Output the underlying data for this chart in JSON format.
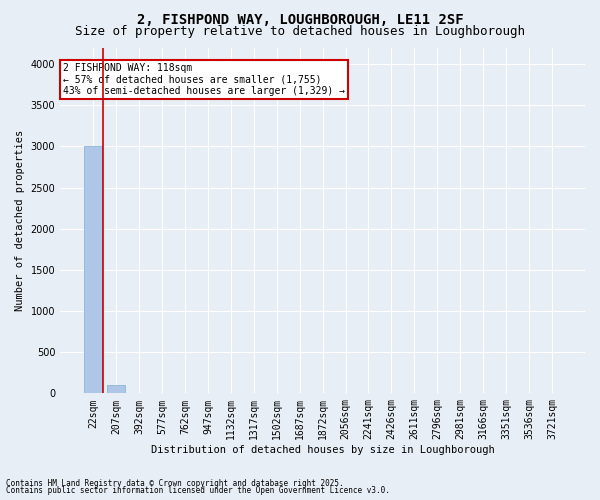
{
  "title1": "2, FISHPOND WAY, LOUGHBOROUGH, LE11 2SF",
  "title2": "Size of property relative to detached houses in Loughborough",
  "xlabel": "Distribution of detached houses by size in Loughborough",
  "ylabel": "Number of detached properties",
  "footer1": "Contains HM Land Registry data © Crown copyright and database right 2025.",
  "footer2": "Contains public sector information licensed under the Open Government Licence v3.0.",
  "annotation_line1": "2 FISHPOND WAY: 118sqm",
  "annotation_line2": "← 57% of detached houses are smaller (1,755)",
  "annotation_line3": "43% of semi-detached houses are larger (1,329) →",
  "categories": [
    "22sqm",
    "207sqm",
    "392sqm",
    "577sqm",
    "762sqm",
    "947sqm",
    "1132sqm",
    "1317sqm",
    "1502sqm",
    "1687sqm",
    "1872sqm",
    "2056sqm",
    "2241sqm",
    "2426sqm",
    "2611sqm",
    "2796sqm",
    "2981sqm",
    "3166sqm",
    "3351sqm",
    "3536sqm",
    "3721sqm"
  ],
  "bar_heights": [
    3000,
    100,
    0,
    0,
    0,
    0,
    0,
    0,
    0,
    0,
    0,
    0,
    0,
    0,
    0,
    0,
    0,
    0,
    0,
    0,
    0
  ],
  "bar_color": "#aec6e8",
  "bar_edge_color": "#7bafd4",
  "vline_color": "#cc0000",
  "ylim": [
    0,
    4200
  ],
  "yticks": [
    0,
    500,
    1000,
    1500,
    2000,
    2500,
    3000,
    3500,
    4000
  ],
  "bg_color": "#e8eef5",
  "plot_bg_color": "#e8eef5",
  "grid_color": "#ffffff",
  "annotation_box_color": "#cc0000",
  "title_fontsize": 10,
  "subtitle_fontsize": 9,
  "axis_label_fontsize": 7.5,
  "tick_fontsize": 7,
  "footer_fontsize": 5.5,
  "annotation_fontsize": 7
}
